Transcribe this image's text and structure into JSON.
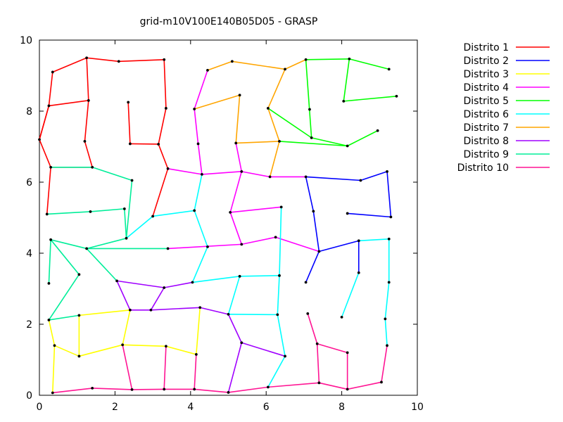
{
  "chart_data": {
    "type": "line",
    "title": "grid-m10V100E140B05D05 -  GRASP",
    "xlabel": "",
    "ylabel": "",
    "xlim": [
      0,
      10
    ],
    "ylim": [
      0,
      10
    ],
    "xticks": [
      "0",
      "2",
      "4",
      "6",
      "8",
      "10"
    ],
    "yticks": [
      "0",
      "2",
      "4",
      "6",
      "8",
      "10"
    ],
    "grid": false,
    "legend_position": "outside-right",
    "points": [
      [
        0.0,
        7.2
      ],
      [
        0.25,
        8.15
      ],
      [
        0.35,
        9.1
      ],
      [
        1.25,
        9.5
      ],
      [
        2.1,
        9.4
      ],
      [
        3.3,
        9.45
      ],
      [
        1.3,
        8.3
      ],
      [
        1.2,
        7.15
      ],
      [
        1.4,
        6.42
      ],
      [
        0.3,
        6.42
      ],
      [
        0.2,
        5.1
      ],
      [
        2.35,
        8.25
      ],
      [
        2.4,
        7.08
      ],
      [
        3.15,
        7.07
      ],
      [
        3.35,
        8.08
      ],
      [
        3.4,
        6.38
      ],
      [
        3.0,
        5.04
      ],
      [
        4.3,
        6.22
      ],
      [
        4.1,
        5.2
      ],
      [
        4.45,
        9.15
      ],
      [
        4.1,
        8.06
      ],
      [
        4.2,
        7.08
      ],
      [
        5.1,
        9.4
      ],
      [
        5.35,
        6.3
      ],
      [
        5.05,
        5.15
      ],
      [
        5.35,
        4.25
      ],
      [
        6.4,
        5.3
      ],
      [
        6.25,
        4.45
      ],
      [
        7.4,
        4.05
      ],
      [
        3.4,
        4.13
      ],
      [
        4.45,
        4.18
      ],
      [
        7.05,
        6.15
      ],
      [
        6.1,
        6.15
      ],
      [
        7.25,
        5.18
      ],
      [
        8.5,
        6.05
      ],
      [
        9.2,
        6.3
      ],
      [
        9.3,
        5.02
      ],
      [
        8.15,
        5.12
      ],
      [
        8.45,
        4.35
      ],
      [
        9.25,
        4.4
      ],
      [
        8.45,
        3.45
      ],
      [
        9.25,
        3.18
      ],
      [
        7.05,
        3.18
      ],
      [
        6.35,
        3.37
      ],
      [
        5.3,
        3.35
      ],
      [
        4.05,
        3.18
      ],
      [
        3.3,
        3.03
      ],
      [
        2.05,
        3.22
      ],
      [
        2.4,
        2.4
      ],
      [
        2.95,
        2.4
      ],
      [
        4.25,
        2.47
      ],
      [
        5.0,
        2.28
      ],
      [
        6.3,
        2.27
      ],
      [
        7.1,
        2.3
      ],
      [
        8.0,
        2.2
      ],
      [
        9.15,
        2.15
      ],
      [
        9.2,
        1.4
      ],
      [
        7.35,
        1.45
      ],
      [
        8.15,
        1.2
      ],
      [
        5.35,
        1.48
      ],
      [
        6.5,
        1.1
      ],
      [
        6.05,
        0.23
      ],
      [
        7.4,
        0.35
      ],
      [
        8.15,
        0.17
      ],
      [
        9.05,
        0.37
      ],
      [
        5.0,
        0.08
      ],
      [
        4.1,
        0.17
      ],
      [
        3.3,
        0.17
      ],
      [
        2.45,
        0.16
      ],
      [
        1.4,
        0.2
      ],
      [
        0.35,
        0.07
      ],
      [
        0.4,
        1.4
      ],
      [
        1.05,
        1.1
      ],
      [
        2.2,
        1.42
      ],
      [
        3.35,
        1.38
      ],
      [
        4.15,
        1.15
      ],
      [
        1.05,
        2.25
      ],
      [
        0.25,
        2.12
      ],
      [
        0.25,
        3.15
      ],
      [
        1.05,
        3.4
      ],
      [
        0.3,
        4.38
      ],
      [
        1.25,
        4.13
      ],
      [
        2.3,
        4.42
      ],
      [
        2.25,
        5.25
      ],
      [
        1.35,
        5.17
      ],
      [
        2.45,
        6.05
      ],
      [
        5.3,
        8.45
      ],
      [
        5.2,
        7.1
      ],
      [
        6.35,
        7.15
      ],
      [
        6.05,
        8.08
      ],
      [
        6.5,
        9.18
      ],
      [
        7.05,
        9.45
      ],
      [
        8.2,
        9.47
      ],
      [
        9.25,
        9.18
      ],
      [
        8.05,
        8.28
      ],
      [
        9.45,
        8.42
      ],
      [
        7.15,
        8.05
      ],
      [
        7.2,
        7.25
      ],
      [
        8.15,
        7.02
      ],
      [
        8.95,
        7.45
      ]
    ],
    "series": [
      {
        "name": "Distrito 1",
        "color": "#ff0000",
        "edges": [
          [
            0,
            1
          ],
          [
            1,
            2
          ],
          [
            2,
            3
          ],
          [
            3,
            4
          ],
          [
            4,
            5
          ],
          [
            5,
            14
          ],
          [
            3,
            6
          ],
          [
            6,
            1
          ],
          [
            6,
            7
          ],
          [
            7,
            8
          ],
          [
            8,
            9
          ],
          [
            9,
            10
          ],
          [
            0,
            1
          ],
          [
            11,
            12
          ],
          [
            12,
            13
          ],
          [
            13,
            14
          ],
          [
            13,
            15
          ],
          [
            15,
            16
          ],
          [
            0,
            9
          ]
        ]
      },
      {
        "name": "Distrito 2",
        "color": "#0000ff",
        "edges": [
          [
            31,
            34
          ],
          [
            34,
            35
          ],
          [
            35,
            36
          ],
          [
            36,
            37
          ],
          [
            31,
            33
          ],
          [
            33,
            28
          ],
          [
            28,
            38
          ],
          [
            38,
            40
          ],
          [
            28,
            42
          ]
        ]
      },
      {
        "name": "Distrito 3",
        "color": "#ffff00",
        "edges": [
          [
            70,
            71
          ],
          [
            71,
            72
          ],
          [
            72,
            73
          ],
          [
            73,
            74
          ],
          [
            74,
            75
          ],
          [
            75,
            50
          ],
          [
            72,
            76
          ],
          [
            76,
            48
          ],
          [
            48,
            73
          ],
          [
            77,
            71
          ]
        ]
      },
      {
        "name": "Distrito 4",
        "color": "#ff00ff",
        "edges": [
          [
            17,
            15
          ],
          [
            17,
            23
          ],
          [
            23,
            24
          ],
          [
            24,
            25
          ],
          [
            24,
            26
          ],
          [
            25,
            29
          ],
          [
            25,
            27
          ],
          [
            27,
            28
          ],
          [
            19,
            20
          ],
          [
            20,
            21
          ],
          [
            21,
            17
          ],
          [
            23,
            87
          ],
          [
            23,
            32
          ],
          [
            32,
            31
          ]
        ]
      },
      {
        "name": "Distrito 5",
        "color": "#00ff00",
        "edges": [
          [
            91,
            92
          ],
          [
            92,
            93
          ],
          [
            92,
            94
          ],
          [
            94,
            95
          ],
          [
            89,
            97
          ],
          [
            97,
            98
          ],
          [
            98,
            99
          ],
          [
            98,
            88
          ],
          [
            97,
            91
          ]
        ]
      },
      {
        "name": "Distrito 6",
        "color": "#00ffff",
        "edges": [
          [
            18,
            17
          ],
          [
            18,
            30
          ],
          [
            30,
            45
          ],
          [
            45,
            44
          ],
          [
            44,
            43
          ],
          [
            43,
            26
          ],
          [
            43,
            52
          ],
          [
            52,
            51
          ],
          [
            51,
            44
          ],
          [
            52,
            60
          ],
          [
            60,
            61
          ],
          [
            38,
            39
          ],
          [
            39,
            41
          ],
          [
            41,
            55
          ],
          [
            55,
            56
          ],
          [
            40,
            54
          ],
          [
            82,
            16
          ],
          [
            16,
            18
          ]
        ]
      },
      {
        "name": "Distrito 7",
        "color": "#ffa500",
        "edges": [
          [
            20,
            86
          ],
          [
            86,
            87
          ],
          [
            87,
            88
          ],
          [
            88,
            89
          ],
          [
            89,
            90
          ],
          [
            90,
            91
          ],
          [
            22,
            90
          ],
          [
            22,
            19
          ],
          [
            88,
            32
          ]
        ]
      },
      {
        "name": "Distrito 8",
        "color": "#a000ff",
        "edges": [
          [
            47,
            46
          ],
          [
            46,
            45
          ],
          [
            47,
            48
          ],
          [
            48,
            49
          ],
          [
            49,
            46
          ],
          [
            49,
            50
          ],
          [
            50,
            51
          ],
          [
            51,
            59
          ],
          [
            59,
            60
          ],
          [
            59,
            65
          ]
        ]
      },
      {
        "name": "Distrito 9",
        "color": "#00ee99",
        "edges": [
          [
            9,
            8
          ],
          [
            8,
            85
          ],
          [
            85,
            82
          ],
          [
            82,
            83
          ],
          [
            83,
            84
          ],
          [
            84,
            10
          ],
          [
            82,
            81
          ],
          [
            81,
            29
          ],
          [
            81,
            47
          ],
          [
            81,
            80
          ],
          [
            80,
            79
          ],
          [
            79,
            77
          ],
          [
            78,
            78
          ],
          [
            77,
            76
          ],
          [
            80,
            78
          ]
        ]
      },
      {
        "name": "Distrito 10",
        "color": "#ff1493",
        "edges": [
          [
            53,
            57
          ],
          [
            57,
            58
          ],
          [
            58,
            63
          ],
          [
            63,
            62
          ],
          [
            62,
            61
          ],
          [
            57,
            62
          ],
          [
            63,
            64
          ],
          [
            64,
            56
          ],
          [
            61,
            65
          ],
          [
            65,
            66
          ],
          [
            66,
            67
          ],
          [
            67,
            68
          ],
          [
            68,
            69
          ],
          [
            69,
            70
          ],
          [
            66,
            75
          ],
          [
            67,
            74
          ],
          [
            68,
            73
          ]
        ]
      }
    ]
  }
}
